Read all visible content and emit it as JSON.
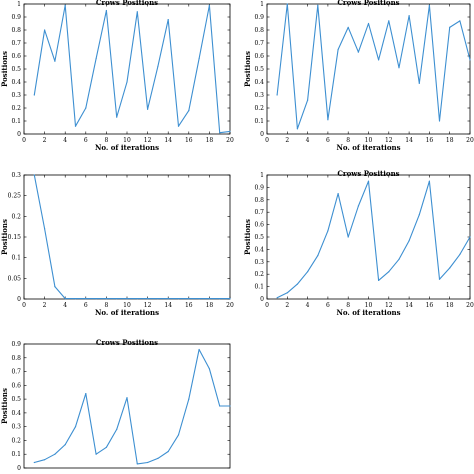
{
  "chart_data": [
    {
      "type": "line",
      "title": "Crows Positions",
      "xlabel": "No. of iterations",
      "ylabel": "Positions",
      "xlim": [
        0,
        20
      ],
      "ylim": [
        0,
        1
      ],
      "xticks": [
        0,
        2,
        4,
        6,
        8,
        10,
        12,
        14,
        16,
        18,
        20
      ],
      "yticks": [
        0,
        0.1,
        0.2,
        0.3,
        0.4,
        0.5,
        0.6,
        0.7,
        0.8,
        0.9,
        1
      ],
      "grid": false,
      "series": [
        {
          "x": [
            1,
            2,
            3,
            4,
            5,
            6,
            7,
            8,
            9,
            10,
            11,
            12,
            13,
            14,
            15,
            16,
            17,
            18,
            19,
            20
          ],
          "y": [
            0.3,
            0.8,
            0.56,
            0.99,
            0.06,
            0.2,
            0.58,
            0.95,
            0.13,
            0.4,
            0.94,
            0.19,
            0.52,
            0.88,
            0.06,
            0.18,
            0.58,
            0.99,
            0.01,
            0.02
          ]
        }
      ]
    },
    {
      "type": "line",
      "title": "Crows Positions",
      "xlabel": "No. of iterations",
      "ylabel": "Positions",
      "xlim": [
        0,
        20
      ],
      "ylim": [
        0,
        1
      ],
      "xticks": [
        0,
        2,
        4,
        6,
        8,
        10,
        12,
        14,
        16,
        18,
        20
      ],
      "yticks": [
        0,
        0.1,
        0.2,
        0.3,
        0.4,
        0.5,
        0.6,
        0.7,
        0.8,
        0.9,
        1
      ],
      "grid": false,
      "series": [
        {
          "x": [
            1,
            2,
            3,
            4,
            5,
            6,
            7,
            8,
            9,
            10,
            11,
            12,
            13,
            14,
            15,
            16,
            17,
            18,
            19,
            20
          ],
          "y": [
            0.3,
            1.0,
            0.04,
            0.26,
            0.99,
            0.11,
            0.65,
            0.82,
            0.63,
            0.85,
            0.57,
            0.87,
            0.51,
            0.91,
            0.39,
            0.99,
            0.1,
            0.82,
            0.87,
            0.57
          ]
        }
      ]
    },
    {
      "type": "line",
      "title": "",
      "xlabel": "No. of iterations",
      "ylabel": "Positions",
      "xlim": [
        0,
        20
      ],
      "ylim": [
        0,
        0.3
      ],
      "xticks": [
        0,
        2,
        4,
        6,
        8,
        10,
        12,
        14,
        16,
        18,
        20
      ],
      "yticks": [
        0,
        0.05,
        0.1,
        0.15,
        0.2,
        0.25,
        0.3
      ],
      "grid": false,
      "series": [
        {
          "x": [
            1,
            2,
            3,
            4,
            5,
            6,
            7,
            8,
            9,
            10,
            11,
            12,
            13,
            14,
            15,
            16,
            17,
            18,
            19,
            20
          ],
          "y": [
            0.3,
            0.17,
            0.03,
            0.001,
            0.001,
            0.001,
            0.001,
            0.001,
            0.001,
            0.001,
            0.001,
            0.001,
            0.001,
            0.001,
            0.001,
            0.001,
            0.001,
            0.001,
            0.001,
            0.001
          ]
        }
      ]
    },
    {
      "type": "line",
      "title": "Crows Positions",
      "xlabel": "No. of iterations",
      "ylabel": "Positions",
      "xlim": [
        0,
        20
      ],
      "ylim": [
        0,
        1
      ],
      "xticks": [
        0,
        2,
        4,
        6,
        8,
        10,
        12,
        14,
        16,
        18,
        20
      ],
      "yticks": [
        0,
        0.1,
        0.2,
        0.3,
        0.4,
        0.5,
        0.6,
        0.7,
        0.8,
        0.9,
        1
      ],
      "grid": false,
      "series": [
        {
          "x": [
            1,
            2,
            3,
            4,
            5,
            6,
            7,
            8,
            9,
            10,
            11,
            12,
            13,
            14,
            15,
            16,
            17,
            18,
            19,
            20
          ],
          "y": [
            0.01,
            0.05,
            0.12,
            0.22,
            0.35,
            0.55,
            0.85,
            0.5,
            0.75,
            0.95,
            0.15,
            0.22,
            0.32,
            0.47,
            0.68,
            0.95,
            0.16,
            0.25,
            0.36,
            0.5
          ]
        }
      ]
    },
    {
      "type": "line",
      "title": "Crows Positions",
      "xlabel": "",
      "ylabel": "Positions",
      "xlim": [
        0,
        20
      ],
      "ylim": [
        0,
        0.9
      ],
      "xticks": [],
      "yticks": [
        0,
        0.1,
        0.2,
        0.3,
        0.4,
        0.5,
        0.6,
        0.7,
        0.8,
        0.9
      ],
      "grid": false,
      "series": [
        {
          "x": [
            1,
            2,
            3,
            4,
            5,
            6,
            7,
            8,
            9,
            10,
            11,
            12,
            13,
            14,
            15,
            16,
            17,
            18,
            19,
            20
          ],
          "y": [
            0.04,
            0.06,
            0.1,
            0.17,
            0.3,
            0.54,
            0.1,
            0.15,
            0.28,
            0.51,
            0.03,
            0.04,
            0.07,
            0.12,
            0.24,
            0.5,
            0.86,
            0.72,
            0.45,
            0.45
          ]
        }
      ]
    }
  ],
  "style": {
    "line_color": "#3d8fd1",
    "axis_color": "#000000"
  }
}
